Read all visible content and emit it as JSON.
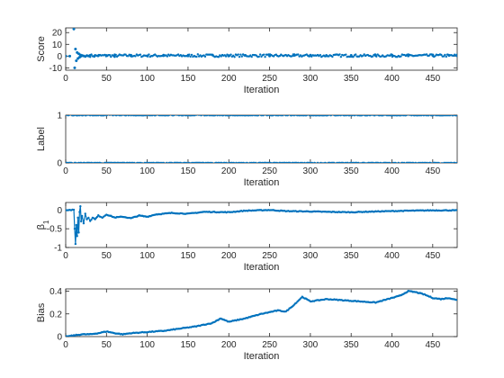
{
  "chart_data": [
    {
      "type": "scatter",
      "xlabel": "Iteration",
      "ylabel": "Score",
      "xlim": [
        0,
        480
      ],
      "ylim": [
        -12,
        24
      ],
      "x_ticks": [
        0,
        50,
        100,
        150,
        200,
        250,
        300,
        350,
        400,
        450
      ],
      "y_ticks": [
        -10,
        0,
        10,
        20
      ],
      "grid": false,
      "series": [
        {
          "color": "#0072BD",
          "x": [
            0,
            5,
            10,
            11,
            12,
            13,
            14,
            15,
            16,
            17,
            18,
            19,
            20,
            22,
            24,
            26,
            28,
            30,
            35,
            40,
            50,
            60,
            80,
            100,
            120,
            150,
            180,
            200,
            220,
            250,
            280,
            300,
            320,
            350,
            380,
            400,
            420,
            450,
            470,
            480
          ],
          "y": [
            0,
            0,
            23,
            -10,
            6,
            -4,
            3,
            -2,
            2,
            -1,
            1,
            0,
            0.5,
            0.2,
            -0.3,
            0.4,
            0.1,
            0.6,
            -0.2,
            0.3,
            0.5,
            -0.4,
            0.7,
            0.3,
            0.8,
            0.2,
            0.9,
            0.4,
            0.6,
            0.1,
            0.5,
            0.8,
            0.3,
            0.6,
            0.4,
            0.9,
            0.2,
            1.0,
            0.5,
            0.3
          ]
        }
      ]
    },
    {
      "type": "scatter",
      "xlabel": "Iteration",
      "ylabel": "Label",
      "xlim": [
        0,
        480
      ],
      "ylim": [
        0,
        1
      ],
      "x_ticks": [
        0,
        50,
        100,
        150,
        200,
        250,
        300,
        350,
        400,
        450
      ],
      "y_ticks": [
        0,
        1
      ],
      "grid": false,
      "series": [
        {
          "color": "#0072BD",
          "x_range": [
            0,
            480
          ],
          "levels": [
            0,
            1
          ],
          "description_pattern": "alternating"
        }
      ]
    },
    {
      "type": "line",
      "xlabel": "Iteration",
      "ylabel": "β1",
      "ylabel_main": "β",
      "ylabel_sub": "1",
      "xlim": [
        0,
        480
      ],
      "ylim": [
        -1,
        0.2
      ],
      "x_ticks": [
        0,
        50,
        100,
        150,
        200,
        250,
        300,
        350,
        400,
        450
      ],
      "y_ticks": [
        -1,
        -0.5,
        0
      ],
      "grid": false,
      "series": [
        {
          "color": "#0072BD",
          "x": [
            0,
            5,
            10,
            11,
            12,
            13,
            14,
            15,
            16,
            17,
            18,
            19,
            20,
            22,
            24,
            26,
            28,
            30,
            33,
            36,
            40,
            45,
            50,
            60,
            70,
            80,
            90,
            100,
            110,
            120,
            130,
            150,
            170,
            200,
            220,
            250,
            270,
            300,
            320,
            350,
            380,
            400,
            420,
            450,
            480
          ],
          "y": [
            0,
            0,
            0,
            -0.5,
            -0.9,
            -0.4,
            -0.7,
            -0.2,
            -0.6,
            -0.05,
            0.1,
            -0.3,
            -0.15,
            -0.35,
            -0.1,
            -0.25,
            -0.2,
            -0.3,
            -0.2,
            -0.25,
            -0.15,
            -0.2,
            -0.12,
            -0.2,
            -0.18,
            -0.22,
            -0.15,
            -0.18,
            -0.12,
            -0.1,
            -0.08,
            -0.1,
            -0.05,
            -0.06,
            -0.02,
            0.0,
            -0.03,
            -0.04,
            -0.05,
            -0.06,
            -0.04,
            -0.03,
            -0.02,
            -0.01,
            -0.01
          ]
        }
      ]
    },
    {
      "type": "line",
      "xlabel": "Iteration",
      "ylabel": "Bias",
      "xlim": [
        0,
        480
      ],
      "ylim": [
        0,
        0.42
      ],
      "x_ticks": [
        0,
        50,
        100,
        150,
        200,
        250,
        300,
        350,
        400,
        450
      ],
      "y_ticks": [
        0,
        0.2,
        0.4
      ],
      "grid": false,
      "series": [
        {
          "color": "#0072BD",
          "x": [
            0,
            10,
            20,
            30,
            40,
            50,
            60,
            70,
            80,
            100,
            120,
            140,
            160,
            180,
            190,
            200,
            220,
            240,
            260,
            270,
            280,
            290,
            300,
            320,
            340,
            360,
            380,
            400,
            410,
            420,
            430,
            440,
            450,
            460,
            470,
            480
          ],
          "y": [
            0.0,
            0.01,
            0.02,
            0.02,
            0.03,
            0.045,
            0.03,
            0.02,
            0.03,
            0.04,
            0.05,
            0.07,
            0.09,
            0.12,
            0.16,
            0.13,
            0.16,
            0.2,
            0.23,
            0.22,
            0.28,
            0.35,
            0.31,
            0.33,
            0.32,
            0.31,
            0.3,
            0.34,
            0.36,
            0.4,
            0.39,
            0.37,
            0.34,
            0.33,
            0.34,
            0.32
          ]
        }
      ]
    }
  ]
}
